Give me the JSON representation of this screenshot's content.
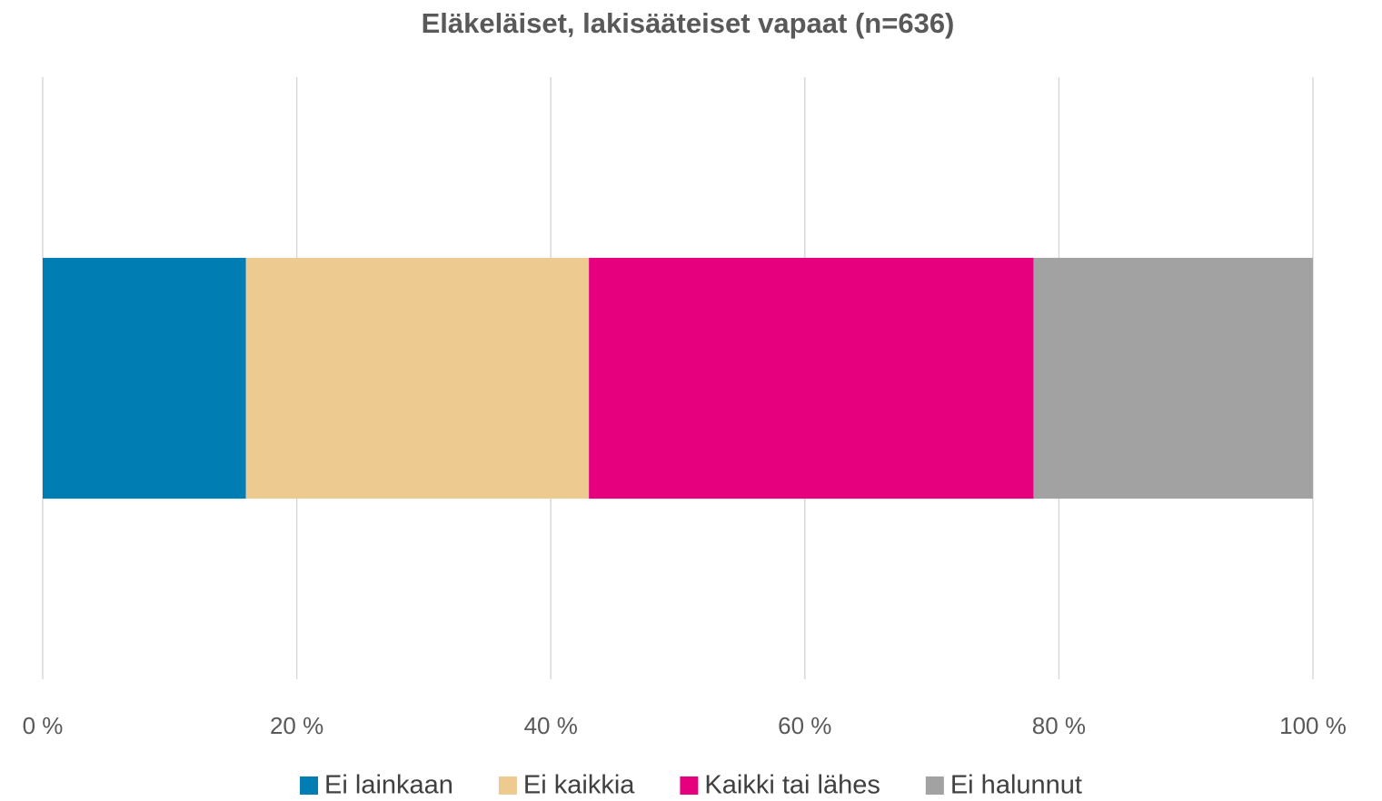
{
  "chart_data": {
    "type": "stacked-bar-horizontal",
    "title": "Eläkeläiset, lakisääteiset vapaat (n=636)",
    "categories": [
      null
    ],
    "series": [
      {
        "name": "Ei lainkaan",
        "color": "#007db3",
        "values": [
          16
        ]
      },
      {
        "name": "Ei kaikkia",
        "color": "#edca8f",
        "values": [
          27
        ]
      },
      {
        "name": "Kaikki tai lähes",
        "color": "#e6007e",
        "values": [
          35
        ]
      },
      {
        "name": "Ei halunnut",
        "color": "#a2a2a2",
        "values": [
          22
        ]
      }
    ],
    "xlim": [
      0,
      100
    ],
    "xticks": [
      {
        "value": 0,
        "label": "0 %"
      },
      {
        "value": 20,
        "label": "20 %"
      },
      {
        "value": 40,
        "label": "40 %"
      },
      {
        "value": 60,
        "label": "60 %"
      },
      {
        "value": 80,
        "label": "80 %"
      },
      {
        "value": 100,
        "label": "100 %"
      }
    ],
    "grid": true,
    "legend": "bottom"
  }
}
